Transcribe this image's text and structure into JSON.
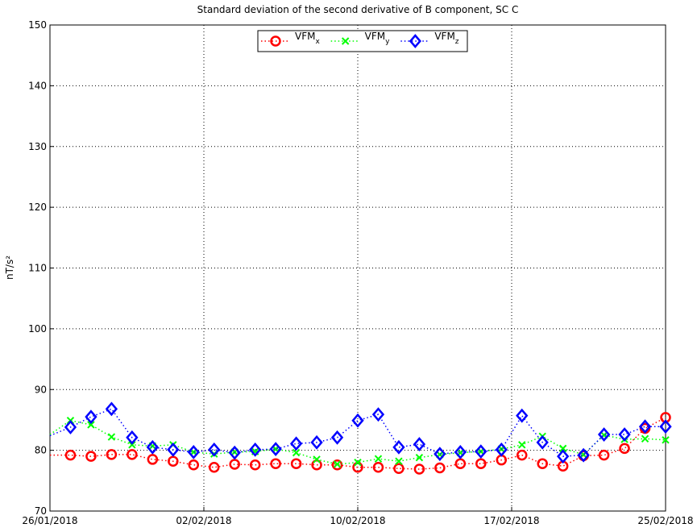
{
  "chart_data": {
    "type": "line",
    "title": "Standard deviation of the second derivative of B component, SC C",
    "ylabel": "nT/s²",
    "x": [
      "2018-01-26",
      "2018-01-27",
      "2018-01-28",
      "2018-01-29",
      "2018-01-30",
      "2018-01-31",
      "2018-02-01",
      "2018-02-02",
      "2018-02-03",
      "2018-02-04",
      "2018-02-05",
      "2018-02-06",
      "2018-02-07",
      "2018-02-08",
      "2018-02-09",
      "2018-02-10",
      "2018-02-11",
      "2018-02-12",
      "2018-02-13",
      "2018-02-14",
      "2018-02-15",
      "2018-02-16",
      "2018-02-17",
      "2018-02-18",
      "2018-02-19",
      "2018-02-20",
      "2018-02-21",
      "2018-02-22",
      "2018-02-23",
      "2018-02-24",
      "2018-02-25"
    ],
    "series": [
      {
        "name": "VFMx",
        "color": "#ff0000",
        "marker": "circle",
        "values": [
          79.2,
          79.2,
          79.0,
          79.3,
          79.3,
          78.5,
          78.2,
          77.6,
          77.2,
          77.7,
          77.6,
          77.8,
          77.8,
          77.6,
          77.6,
          77.2,
          77.2,
          77.0,
          76.9,
          77.1,
          77.8,
          77.8,
          78.4,
          79.2,
          77.8,
          77.4,
          79.1,
          79.2,
          80.3,
          83.6,
          85.4
        ]
      },
      {
        "name": "VFMy",
        "color": "#00ff00",
        "marker": "x",
        "values": [
          82.6,
          84.9,
          84.2,
          82.2,
          80.9,
          80.7,
          80.9,
          79.7,
          79.4,
          79.7,
          79.8,
          80.2,
          79.6,
          78.5,
          77.7,
          78.0,
          78.6,
          78.2,
          78.8,
          79.3,
          79.6,
          79.8,
          80.2,
          80.9,
          82.3,
          80.3,
          79.3,
          82.5,
          81.8,
          81.9,
          81.7
        ]
      },
      {
        "name": "VFMz",
        "color": "#0000ff",
        "marker": "diamond",
        "values": [
          82.4,
          83.8,
          85.5,
          86.8,
          82.1,
          80.5,
          80.1,
          79.7,
          80.1,
          79.6,
          80.1,
          80.2,
          81.1,
          81.3,
          82.1,
          84.9,
          85.9,
          80.5,
          81.0,
          79.4,
          79.7,
          79.8,
          80.1,
          85.7,
          81.3,
          79.0,
          79.2,
          82.6,
          82.6,
          83.9,
          83.9
        ]
      }
    ],
    "xlim": [
      "2018-01-26T00:00",
      "2018-02-25T00:00"
    ],
    "xticks": [
      {
        "value": "2018-01-26T00:00",
        "label": "26/01/2018"
      },
      {
        "value": "2018-02-02T12:00",
        "label": "02/02/2018"
      },
      {
        "value": "2018-02-10T00:00",
        "label": "10/02/2018"
      },
      {
        "value": "2018-02-17T12:00",
        "label": "17/02/2018"
      },
      {
        "value": "2018-02-25T00:00",
        "label": "25/02/2018"
      }
    ],
    "ylim": [
      70,
      150
    ],
    "yticks": [
      70,
      80,
      90,
      100,
      110,
      120,
      130,
      140,
      150
    ],
    "grid": true,
    "legend": "top"
  }
}
